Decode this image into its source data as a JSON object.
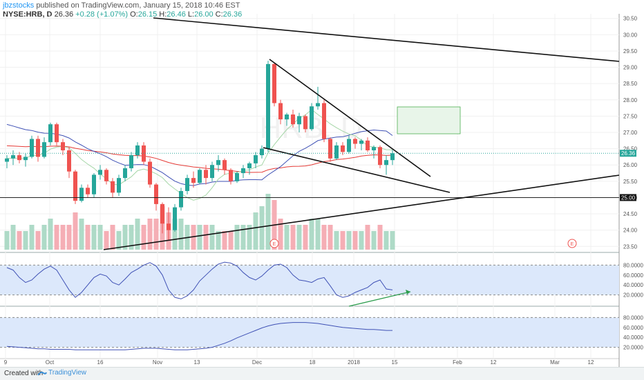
{
  "header": {
    "author": "jbzstocks",
    "published": "published on TradingView.com, January 15, 2018 10:46 EST",
    "symbol": "NYSE:HRB, D",
    "price": "26.36",
    "change": "+0.28 (+1.07%)",
    "open_label": "O:",
    "open": "26.15",
    "high_label": "H:",
    "high": "26.46",
    "low_label": "L:",
    "low": "26.00",
    "close_label": "C:",
    "close": "26.36"
  },
  "watermark": "HRB, D",
  "footer": {
    "created": "Created with",
    "brand": "TradingView"
  },
  "colors": {
    "up": "#26a69a",
    "down": "#ef5350",
    "ma_long": "#e53935",
    "ma_short": "#3f51b5",
    "ma_green": "#a5d6a7",
    "osc": "#3f51b5",
    "band": "#dce8fb"
  },
  "chart_data": [
    {
      "type": "candlestick",
      "panel": "price",
      "yticks": [
        "30.50",
        "30.00",
        "29.50",
        "29.00",
        "28.50",
        "28.00",
        "27.50",
        "27.00",
        "26.50",
        "26.00",
        "25.50",
        "25.00",
        "24.50",
        "24.00",
        "23.50"
      ],
      "ylim": [
        23.4,
        30.6
      ],
      "current_price_label": "26.36",
      "level_label": "25.00",
      "xticks": [
        "9",
        "Oct",
        "16",
        "Nov",
        "13",
        "Dec",
        "18",
        "2018",
        "15",
        "Feb",
        "12",
        "Mar",
        "12"
      ],
      "ohlc": [
        [
          26.1,
          26.3,
          25.9,
          26.2
        ],
        [
          26.2,
          26.45,
          26.0,
          26.3
        ],
        [
          26.3,
          26.4,
          26.05,
          26.15
        ],
        [
          26.15,
          26.35,
          25.95,
          26.25
        ],
        [
          26.25,
          26.9,
          26.2,
          26.8
        ],
        [
          26.8,
          26.9,
          26.1,
          26.25
        ],
        [
          26.25,
          26.85,
          26.2,
          26.7
        ],
        [
          26.7,
          27.3,
          26.6,
          27.25
        ],
        [
          27.25,
          27.3,
          26.6,
          26.7
        ],
        [
          26.7,
          26.8,
          26.3,
          26.45
        ],
        [
          26.45,
          26.55,
          25.6,
          25.8
        ],
        [
          25.8,
          25.85,
          24.8,
          24.9
        ],
        [
          24.9,
          25.4,
          24.85,
          25.3
        ],
        [
          25.3,
          25.4,
          25.0,
          25.1
        ],
        [
          25.1,
          25.75,
          25.0,
          25.7
        ],
        [
          25.7,
          26.0,
          25.55,
          25.85
        ],
        [
          25.85,
          25.9,
          25.4,
          25.5
        ],
        [
          25.5,
          25.6,
          25.0,
          25.15
        ],
        [
          25.15,
          25.7,
          25.05,
          25.6
        ],
        [
          25.6,
          26.0,
          25.5,
          25.9
        ],
        [
          25.9,
          26.4,
          25.8,
          26.3
        ],
        [
          26.3,
          26.7,
          26.2,
          26.6
        ],
        [
          26.6,
          26.7,
          26.0,
          26.1
        ],
        [
          26.1,
          26.2,
          25.3,
          25.4
        ],
        [
          25.4,
          25.45,
          24.6,
          24.8
        ],
        [
          24.8,
          24.85,
          23.9,
          24.2
        ],
        [
          24.2,
          24.7,
          23.7,
          24.0
        ],
        [
          24.0,
          24.8,
          23.95,
          24.7
        ],
        [
          24.7,
          25.3,
          24.6,
          25.2
        ],
        [
          25.2,
          25.7,
          25.1,
          25.6
        ],
        [
          25.6,
          25.8,
          25.3,
          25.45
        ],
        [
          25.45,
          25.9,
          25.4,
          25.85
        ],
        [
          25.85,
          26.0,
          25.4,
          25.6
        ],
        [
          25.6,
          26.1,
          25.5,
          26.0
        ],
        [
          26.0,
          26.3,
          25.8,
          26.15
        ],
        [
          26.15,
          26.2,
          25.7,
          25.85
        ],
        [
          25.85,
          25.9,
          25.4,
          25.5
        ],
        [
          25.5,
          25.8,
          25.45,
          25.75
        ],
        [
          25.75,
          26.0,
          25.6,
          25.9
        ],
        [
          25.9,
          26.1,
          25.7,
          26.05
        ],
        [
          26.05,
          26.4,
          25.9,
          26.3
        ],
        [
          26.3,
          26.6,
          26.2,
          26.5
        ],
        [
          26.5,
          29.2,
          26.4,
          29.1
        ],
        [
          29.1,
          29.15,
          27.8,
          27.9
        ],
        [
          27.9,
          28.0,
          27.25,
          27.4
        ],
        [
          27.4,
          27.6,
          27.2,
          27.55
        ],
        [
          27.55,
          27.7,
          27.15,
          27.25
        ],
        [
          27.25,
          27.6,
          27.0,
          27.5
        ],
        [
          27.5,
          27.55,
          27.0,
          27.1
        ],
        [
          27.1,
          27.9,
          27.05,
          27.8
        ],
        [
          27.8,
          28.4,
          27.7,
          27.9
        ],
        [
          27.9,
          28.0,
          26.7,
          26.8
        ],
        [
          26.8,
          26.85,
          26.1,
          26.2
        ],
        [
          26.2,
          26.7,
          26.15,
          26.6
        ],
        [
          26.6,
          26.7,
          26.3,
          26.4
        ],
        [
          26.4,
          26.9,
          26.35,
          26.8
        ],
        [
          26.8,
          26.85,
          26.5,
          26.65
        ],
        [
          26.65,
          26.8,
          26.45,
          26.75
        ],
        [
          26.75,
          26.85,
          26.4,
          26.45
        ],
        [
          26.45,
          26.6,
          26.2,
          26.55
        ],
        [
          26.55,
          26.6,
          25.9,
          26.0
        ],
        [
          26.0,
          26.3,
          25.7,
          26.15
        ],
        [
          26.15,
          26.46,
          26.0,
          26.36
        ]
      ],
      "volume": [
        3,
        4,
        3,
        3,
        4,
        3,
        4,
        5,
        4,
        4,
        4,
        6,
        5,
        4,
        4,
        4,
        3,
        4,
        3,
        4,
        4,
        5,
        4,
        5,
        5,
        7,
        6,
        5,
        5,
        4,
        4,
        4,
        4,
        4,
        3,
        3,
        3,
        4,
        4,
        4,
        6,
        7,
        9,
        8,
        5,
        4,
        4,
        4,
        4,
        5,
        5,
        4,
        4,
        3,
        3,
        3,
        3,
        3,
        4,
        3,
        4,
        3,
        3
      ]
    },
    {
      "type": "line",
      "panel": "oscillator-1",
      "yticks": [
        "80.0000",
        "60.0000",
        "40.0000",
        "20.0000"
      ],
      "ylim": [
        0,
        100
      ],
      "bands": [
        20,
        80
      ],
      "values": [
        75,
        70,
        55,
        45,
        50,
        62,
        72,
        78,
        70,
        50,
        30,
        15,
        25,
        40,
        55,
        62,
        58,
        45,
        40,
        52,
        65,
        72,
        80,
        85,
        78,
        60,
        30,
        15,
        12,
        18,
        30,
        48,
        60,
        72,
        82,
        86,
        84,
        78,
        65,
        55,
        50,
        58,
        70,
        80,
        82,
        75,
        60,
        50,
        48,
        45,
        52,
        55,
        38,
        20,
        15,
        18,
        25,
        30,
        35,
        45,
        50,
        32,
        30
      ]
    },
    {
      "type": "line",
      "panel": "oscillator-2",
      "yticks": [
        "80.0000",
        "60.0000",
        "40.0000",
        "20.0000"
      ],
      "ylim": [
        0,
        100
      ],
      "bands": [
        20,
        80
      ],
      "values": [
        22,
        21,
        20,
        19,
        18,
        17,
        17,
        16,
        16,
        16,
        16,
        15,
        15,
        15,
        15,
        15,
        15,
        15,
        15,
        15,
        16,
        17,
        18,
        18,
        18,
        17,
        16,
        15,
        15,
        15,
        16,
        17,
        18,
        20,
        24,
        28,
        33,
        39,
        44,
        49,
        54,
        59,
        63,
        66,
        68,
        69,
        70,
        70,
        70,
        69,
        68,
        66,
        64,
        62,
        60,
        59,
        58,
        57,
        56,
        56,
        55,
        54,
        54
      ]
    }
  ]
}
